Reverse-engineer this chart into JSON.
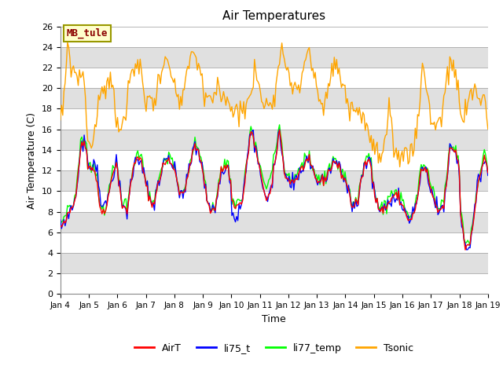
{
  "title": "Air Temperatures",
  "xlabel": "Time",
  "ylabel": "Air Temperature (C)",
  "ylim": [
    0,
    26
  ],
  "annotation_label": "MB_tule",
  "legend_entries": [
    "AirT",
    "li75_t",
    "li77_temp",
    "Tsonic"
  ],
  "legend_colors": [
    "red",
    "blue",
    "lime",
    "orange"
  ],
  "x_tick_labels": [
    "Jan 4",
    "Jan 5",
    "Jan 6",
    "Jan 7",
    "Jan 8",
    "Jan 9",
    "Jan 10",
    "Jan 11",
    "Jan 12",
    "Jan 13",
    "Jan 14",
    "Jan 15",
    "Jan 16",
    "Jan 17",
    "Jan 18",
    "Jan 19"
  ],
  "background_color": "#f0f0f0",
  "band_color_white": "#ffffff",
  "band_color_gray": "#e0e0e0",
  "yticks": [
    0,
    2,
    4,
    6,
    8,
    10,
    12,
    14,
    16,
    18,
    20,
    22,
    24,
    26
  ],
  "num_points": 360,
  "line_width": 1.0
}
